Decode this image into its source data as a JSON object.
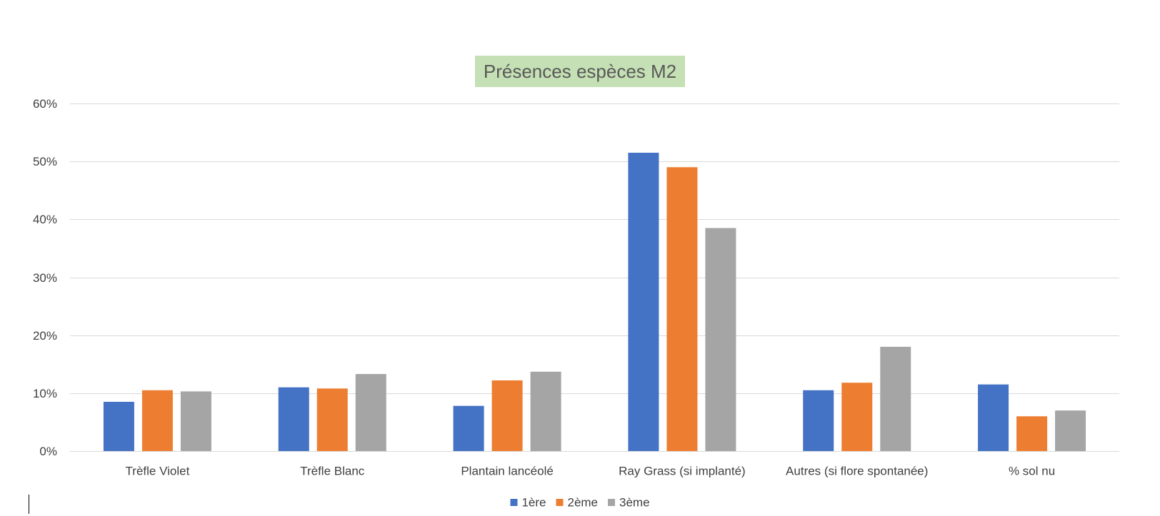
{
  "chart_data": {
    "type": "bar",
    "title": "Présences espèces M2",
    "xlabel": "",
    "ylabel": "",
    "ylim": [
      0,
      0.6
    ],
    "y_ticks": [
      0,
      0.1,
      0.2,
      0.3,
      0.4,
      0.5,
      0.6
    ],
    "y_tick_labels": [
      "0%",
      "10%",
      "20%",
      "30%",
      "40%",
      "50%",
      "60%"
    ],
    "grid": true,
    "legend_position": "bottom",
    "categories": [
      "Trèfle Violet",
      "Trèfle Blanc",
      "Plantain lancéolé",
      "Ray Grass (si implanté)",
      "Autres (si flore spontanée)",
      "% sol nu"
    ],
    "series": [
      {
        "name": "1ère",
        "color": "#4472c4",
        "values": [
          0.085,
          0.11,
          0.078,
          0.515,
          0.105,
          0.115
        ]
      },
      {
        "name": "2ème",
        "color": "#ed7d31",
        "values": [
          0.105,
          0.108,
          0.122,
          0.49,
          0.118,
          0.06
        ]
      },
      {
        "name": "3ème",
        "color": "#a5a5a5",
        "values": [
          0.103,
          0.133,
          0.137,
          0.385,
          0.18,
          0.07
        ]
      }
    ]
  }
}
